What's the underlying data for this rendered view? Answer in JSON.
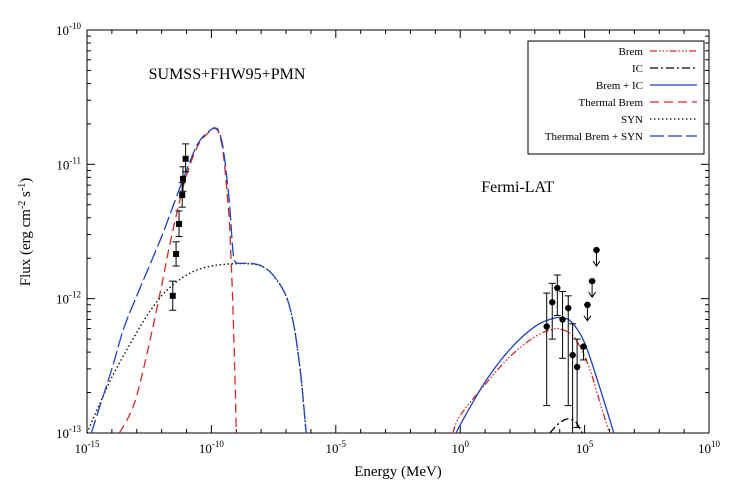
{
  "chart_data": {
    "type": "line",
    "xscale": "log",
    "yscale": "log",
    "xlim": [
      1e-15,
      10000000000.0
    ],
    "ylim": [
      1e-13,
      1e-10
    ],
    "xlabel": "Energy (MeV)",
    "ylabel": {
      "main": "Flux (erg cm",
      "sup1": "-2",
      "mid": " s",
      "sup2": "-1",
      "end": ")"
    },
    "x_ticks": [
      {
        "value": 1e-15,
        "base": "10",
        "exp": "-15"
      },
      {
        "value": 1e-10,
        "base": "10",
        "exp": "-10"
      },
      {
        "value": 1e-05,
        "base": "10",
        "exp": "-5"
      },
      {
        "value": 1,
        "base": "10",
        "exp": "0"
      },
      {
        "value": 100000.0,
        "base": "10",
        "exp": "5"
      },
      {
        "value": 10000000000.0,
        "base": "10",
        "exp": "10"
      }
    ],
    "y_ticks": [
      {
        "value": 1e-13,
        "base": "10",
        "exp": "-13"
      },
      {
        "value": 1e-12,
        "base": "10",
        "exp": "-12"
      },
      {
        "value": 1e-11,
        "base": "10",
        "exp": "-11"
      },
      {
        "value": 1e-10,
        "base": "10",
        "exp": "-10"
      }
    ],
    "annotations": [
      {
        "text": "SUMSS+FHW95+PMN",
        "x": 3e-13,
        "y": 4.3e-11
      },
      {
        "text": "Fermi-LAT",
        "x": 7,
        "y": 6.2e-12
      }
    ],
    "legend_position": "top-right",
    "series": [
      {
        "name": "Brem",
        "color": "#d62728",
        "dash": "7,2,1.5,2,1.5,2,1.5,2",
        "points": [
          [
            0.5,
            1e-13
          ],
          [
            1,
            1.35e-13
          ],
          [
            10,
            2.3e-13
          ],
          [
            100,
            3.7e-13
          ],
          [
            1000,
            5.2e-13
          ],
          [
            5000,
            5.9e-13
          ],
          [
            12000,
            5.9e-13
          ],
          [
            40000,
            5.1e-13
          ],
          [
            150000,
            3.1e-13
          ],
          [
            500000,
            1.5e-13
          ],
          [
            1000000,
            1e-13
          ]
        ]
      },
      {
        "name": "IC",
        "color": "#000000",
        "dash": "8,3,2,3",
        "points": [
          [
            4000,
            1e-13
          ],
          [
            8000,
            1.15e-13
          ],
          [
            15000,
            1.25e-13
          ],
          [
            25000,
            1.27e-13
          ],
          [
            45000,
            1.2e-13
          ],
          [
            80000,
            1e-13
          ]
        ]
      },
      {
        "name": "Brem + IC",
        "color": "#1f3fc8",
        "dash": "",
        "points": [
          [
            0.7,
            1e-13
          ],
          [
            1,
            1.15e-13
          ],
          [
            10,
            2.4e-13
          ],
          [
            100,
            4.2e-13
          ],
          [
            1000,
            6.2e-13
          ],
          [
            5000,
            7.1e-13
          ],
          [
            12000,
            7.2e-13
          ],
          [
            30000,
            6.7e-13
          ],
          [
            100000,
            4.7e-13
          ],
          [
            400000,
            2.2e-13
          ],
          [
            1500000,
            1e-13
          ]
        ]
      },
      {
        "name": "Thermal Brem",
        "color": "#d62728",
        "dash": "9,5",
        "points": [
          [
            2e-14,
            1e-13
          ],
          [
            5e-14,
            1.35e-13
          ],
          [
            1e-13,
            1.9e-13
          ],
          [
            3e-13,
            4.4e-13
          ],
          [
            1e-12,
            1.25e-12
          ],
          [
            2e-12,
            2.4e-12
          ],
          [
            5e-12,
            5.1e-12
          ],
          [
            1e-11,
            8.3e-12
          ],
          [
            3e-11,
            1.4e-11
          ],
          [
            1e-10,
            1.8e-11
          ],
          [
            1.5e-10,
            1.84e-11
          ],
          [
            2e-10,
            1.7e-11
          ],
          [
            3e-10,
            1.2e-11
          ],
          [
            5e-10,
            4.3e-12
          ],
          [
            6e-10,
            2.2e-12
          ],
          [
            7e-10,
            1.1e-12
          ],
          [
            8e-10,
            5e-13
          ],
          [
            9e-10,
            2.3e-13
          ],
          [
            1e-09,
            1e-13
          ]
        ]
      },
      {
        "name": "SYN",
        "color": "#000000",
        "dash": "1.5,2.5",
        "points": [
          [
            1e-15,
            1e-13
          ],
          [
            3e-15,
            1.6e-13
          ],
          [
            1e-14,
            2.6e-13
          ],
          [
            3e-14,
            3.8e-13
          ],
          [
            1e-13,
            5.6e-13
          ],
          [
            3e-13,
            7.8e-13
          ],
          [
            1e-12,
            1.05e-12
          ],
          [
            3e-12,
            1.28e-12
          ],
          [
            1e-11,
            1.5e-12
          ],
          [
            3e-11,
            1.65e-12
          ],
          [
            1e-10,
            1.75e-12
          ],
          [
            3e-10,
            1.8e-12
          ],
          [
            1e-09,
            1.82e-12
          ],
          [
            3e-09,
            1.82e-12
          ],
          [
            1e-08,
            1.75e-12
          ],
          [
            3e-08,
            1.5e-12
          ],
          [
            1e-07,
            1.05e-12
          ],
          [
            2e-07,
            6.5e-13
          ],
          [
            3e-07,
            4e-13
          ],
          [
            4e-07,
            2.6e-13
          ],
          [
            5e-07,
            1.7e-13
          ],
          [
            6e-07,
            1.15e-13
          ],
          [
            6.5e-07,
            1e-13
          ]
        ]
      },
      {
        "name": "Thermal Brem + SYN",
        "color": "#1f3fc8",
        "dash": "14,4",
        "points": [
          [
            1.5e-15,
            1e-13
          ],
          [
            3e-15,
            1.5e-13
          ],
          [
            1e-14,
            3e-13
          ],
          [
            3e-14,
            6e-13
          ],
          [
            1e-13,
            1.05e-12
          ],
          [
            3e-13,
            1.7e-12
          ],
          [
            1e-12,
            2.9e-12
          ],
          [
            3e-12,
            5e-12
          ],
          [
            1e-11,
            9e-12
          ],
          [
            3e-11,
            1.45e-11
          ],
          [
            1e-10,
            1.82e-11
          ],
          [
            1.5e-10,
            1.86e-11
          ],
          [
            2e-10,
            1.75e-11
          ],
          [
            3e-10,
            1.3e-11
          ],
          [
            5e-10,
            5.8e-12
          ],
          [
            6e-10,
            3.8e-12
          ],
          [
            7e-10,
            2.5e-12
          ],
          [
            8e-10,
            2e-12
          ],
          [
            1e-09,
            1.85e-12
          ],
          [
            2e-09,
            1.83e-12
          ],
          [
            3e-09,
            1.84e-12
          ],
          [
            1e-08,
            1.76e-12
          ],
          [
            3e-08,
            1.5e-12
          ],
          [
            1e-07,
            1.05e-12
          ],
          [
            2e-07,
            6.5e-13
          ],
          [
            3e-07,
            4e-13
          ],
          [
            4e-07,
            2.6e-13
          ],
          [
            5e-07,
            1.7e-13
          ],
          [
            6e-07,
            1.15e-13
          ],
          [
            6.5e-07,
            1e-13
          ]
        ]
      }
    ],
    "data_radio": {
      "marker": "square",
      "points": [
        {
          "x": 2.8e-12,
          "y": 1.05e-12,
          "lo": 8.2e-13,
          "hi": 1.35e-12
        },
        {
          "x": 3.8e-12,
          "y": 2.15e-12,
          "lo": 1.75e-12,
          "hi": 2.65e-12
        },
        {
          "x": 5e-12,
          "y": 3.6e-12,
          "lo": 2.9e-12,
          "hi": 4.5e-12
        },
        {
          "x": 6.7e-12,
          "y": 5.9e-12,
          "lo": 4.8e-12,
          "hi": 7.3e-12
        },
        {
          "x": 7.2e-12,
          "y": 7.8e-12,
          "lo": 6.3e-12,
          "hi": 9.6e-12
        },
        {
          "x": 9.2e-12,
          "y": 1.1e-11,
          "lo": 8.8e-12,
          "hi": 1.42e-11
        }
      ]
    },
    "data_fermi": {
      "marker": "circle",
      "points": [
        {
          "x": 3000,
          "y": 6.2e-13,
          "lo": 1.6e-13,
          "hi": 1.1e-12
        },
        {
          "x": 5000,
          "y": 9.4e-13,
          "lo": 5e-13,
          "hi": 1.3e-12
        },
        {
          "x": 8000,
          "y": 1.2e-12,
          "lo": 7.5e-13,
          "hi": 1.5e-12
        },
        {
          "x": 13000,
          "y": 7e-13,
          "lo": 3.6e-13,
          "hi": 1.13e-12
        },
        {
          "x": 22000,
          "y": 8.5e-13,
          "lo": 1.6e-13,
          "hi": 1.05e-12
        },
        {
          "x": 33000,
          "y": 3.8e-13,
          "lo": 1e-13,
          "hi": 6.5e-13
        },
        {
          "x": 50000,
          "y": 3.1e-13,
          "lo": 1.1e-13,
          "hi": 5e-13
        },
        {
          "x": 90000,
          "y": 4.4e-13,
          "lo": 3.5e-13,
          "hi": 4.4e-13
        }
      ],
      "upper_limits": [
        {
          "x": 130000,
          "y": 9e-13
        },
        {
          "x": 200000,
          "y": 1.35e-12
        },
        {
          "x": 300000,
          "y": 2.3e-12
        }
      ]
    }
  }
}
